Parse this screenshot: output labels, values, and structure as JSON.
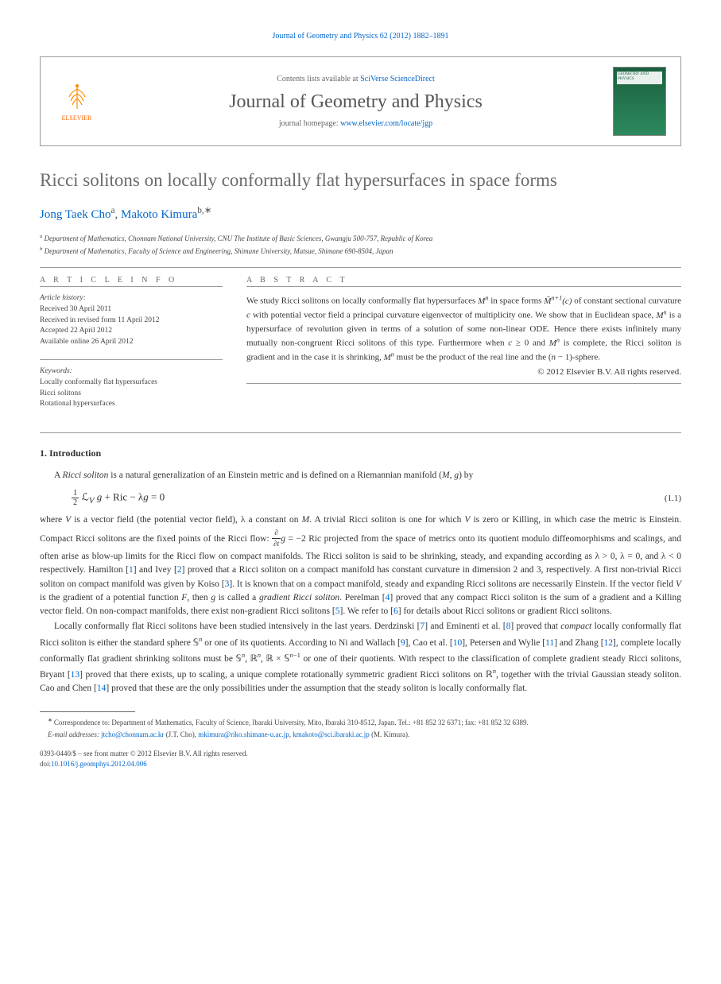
{
  "header": {
    "citation": "Journal of Geometry and Physics 62 (2012) 1882–1891"
  },
  "masthead": {
    "elsevier_label": "ELSEVIER",
    "contents_prefix": "Contents lists available at ",
    "contents_link": "SciVerse ScienceDirect",
    "journal_name": "Journal of Geometry and Physics",
    "homepage_prefix": "journal homepage: ",
    "homepage_url": "www.elsevier.com/locate/jgp",
    "cover_text": "GEOMETRY AND PHYSICS"
  },
  "title": "Ricci solitons on locally conformally flat hypersurfaces in space forms",
  "authors": {
    "a1_name": "Jong Taek Cho",
    "a1_sup": "a",
    "a2_name": "Makoto Kimura",
    "a2_sup": "b,∗"
  },
  "affiliations": {
    "a": "Department of Mathematics, Chonnam National University, CNU The Institute of Basic Sciences, Gwangju 500-757, Republic of Korea",
    "b": "Department of Mathematics, Faculty of Science and Engineering, Shimane University, Matsue, Shimane 690-8504, Japan"
  },
  "info": {
    "heading": "A R T I C L E   I N F O",
    "history_title": "Article history:",
    "received": "Received 30 April 2011",
    "revised": "Received in revised form 11 April 2012",
    "accepted": "Accepted 22 April 2012",
    "online": "Available online 26 April 2012",
    "keywords_title": "Keywords:",
    "kw1": "Locally conformally flat hypersurfaces",
    "kw2": "Ricci solitons",
    "kw3": "Rotational hypersurfaces"
  },
  "abstract": {
    "heading": "A B S T R A C T",
    "text_html": "We study Ricci solitons on locally conformally flat hypersurfaces <i>M<sup>n</sup></i> in space forms <i>M̃<sup>n+1</sup>(c)</i> of constant sectional curvature <i>c</i> with potential vector field a principal curvature eigenvector of multiplicity one. We show that in Euclidean space, <i>M<sup>n</sup></i> is a hypersurface of revolution given in terms of a solution of some non-linear ODE. Hence there exists infinitely many mutually non-congruent Ricci solitons of this type. Furthermore when <i>c</i> ≥ 0 and <i>M<sup>n</sup></i> is complete, the Ricci soliton is gradient and in the case it is shrinking, <i>M<sup>n</sup></i> must be the product of the real line and the (<i>n</i> − 1)-sphere.",
    "copyright": "© 2012 Elsevier B.V. All rights reserved."
  },
  "section1": {
    "heading": "1. Introduction",
    "para1_html": "A <i>Ricci soliton</i> is a natural generalization of an Einstein metric and is defined on a Riemannian manifold (<i>M</i>, <i>g</i>) by",
    "eq_num": "(1.1)",
    "para2_html": "where <i>V</i> is a vector field (the potential vector field), λ a constant on <i>M</i>. A trivial Ricci soliton is one for which <i>V</i> is zero or Killing, in which case the metric is Einstein. Compact Ricci solitons are the fixed points of the Ricci flow: <span class='frac'><span class='num'>∂</span><span class='den'>∂<i>t</i></span></span><i>g</i> = −2 Ric projected from the space of metrics onto its quotient modulo diffeomorphisms and scalings, and often arise as blow-up limits for the Ricci flow on compact manifolds. The Ricci soliton is said to be shrinking, steady, and expanding according as λ &gt; 0, λ = 0, and λ &lt; 0 respectively. Hamilton [<a href='#'>1</a>] and Ivey [<a href='#'>2</a>] proved that a Ricci soliton on a compact manifold has constant curvature in dimension 2 and 3, respectively. A first non-trivial Ricci soliton on compact manifold was given by Koiso [<a href='#'>3</a>]. It is known that on a compact manifold, steady and expanding Ricci solitons are necessarily Einstein. If the vector field <i>V</i> is the gradient of a potential function <i>F</i>, then <i>g</i> is called a <i>gradient Ricci soliton</i>. Perelman [<a href='#'>4</a>] proved that any compact Ricci soliton is the sum of a gradient and a Killing vector field. On non-compact manifolds, there exist non-gradient Ricci solitons [<a href='#'>5</a>]. We refer to [<a href='#'>6</a>] for details about Ricci solitons or gradient Ricci solitons.",
    "para3_html": "Locally conformally flat Ricci solitons have been studied intensively in the last years. Derdzinski [<a href='#'>7</a>] and Eminenti et al. [<a href='#'>8</a>] proved that <i>compact</i> locally conformally flat Ricci soliton is either the standard sphere 𝕊<sup><i>n</i></sup> or one of its quotients. According to Ni and Wallach [<a href='#'>9</a>], Cao et al. [<a href='#'>10</a>], Petersen and Wylie [<a href='#'>11</a>] and Zhang [<a href='#'>12</a>], complete locally conformally flat gradient shrinking solitons must be 𝕊<sup><i>n</i></sup>, ℝ<sup><i>n</i></sup>, ℝ × 𝕊<sup><i>n</i>−1</sup> or one of their quotients. With respect to the classification of complete gradient steady Ricci solitons, Bryant [<a href='#'>13</a>] proved that there exists, up to scaling, a unique complete rotationally symmetric gradient Ricci solitons on ℝ<sup><i>n</i></sup>, together with the trivial Gaussian steady soliton. Cao and Chen [<a href='#'>14</a>] proved that these are the only possibilities under the assumption that the steady soliton is locally conformally flat."
  },
  "footnotes": {
    "corr": "Correspondence to: Department of Mathematics, Faculty of Science, Ibaraki University, Mito, Ibaraki 310-8512, Japan. Tel.: +81 852 32 6371; fax: +81 852 32 6389.",
    "emails_label": "E-mail addresses:",
    "e1": "jtcho@chonnam.ac.kr",
    "e1_who": "(J.T. Cho)",
    "e2": "mkimura@riko.shimane-u.ac.jp",
    "e3": "kmakoto@sci.ibaraki.ac.jp",
    "e3_who": "(M. Kimura)."
  },
  "bottom": {
    "line1": "0393-0440/$ – see front matter © 2012 Elsevier B.V. All rights reserved.",
    "doi_prefix": "doi:",
    "doi": "10.1016/j.geomphys.2012.04.006"
  }
}
